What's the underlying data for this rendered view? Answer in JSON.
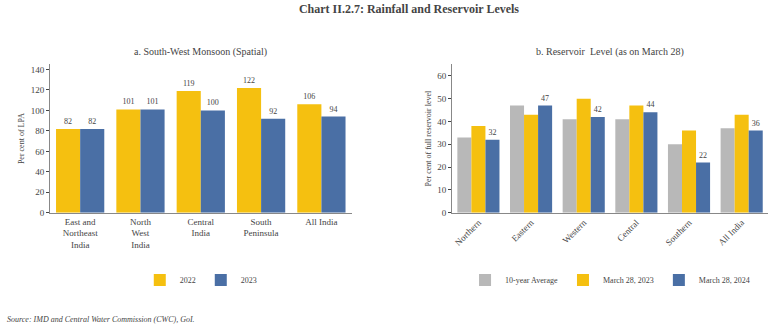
{
  "title": "Chart II.2.7: Rainfall and Reservoir Levels",
  "annotations": [
    "Source: IMD and Central Water Commission (CWC), GoI."
  ],
  "chart_data": [
    {
      "type": "bar",
      "title": "a. South-West Monsoon (Spatial)",
      "categories": [
        "East and\nNortheast\nIndia",
        "North\nWest\nIndia",
        "Central\nIndia",
        "South\nPeninsula",
        "All India"
      ],
      "series": [
        {
          "name": "2022",
          "color": "#f5c010",
          "values": [
            82,
            101,
            119,
            122,
            106
          ]
        },
        {
          "name": "2023",
          "color": "#4a6fa5",
          "values": [
            82,
            101,
            100,
            92,
            94
          ]
        }
      ],
      "ylabel": "Per cent of LPA",
      "ylim": [
        0,
        145
      ],
      "yticks": [
        0,
        20,
        40,
        60,
        80,
        100,
        120,
        140
      ],
      "grid": false,
      "legend": "bottom",
      "data_labels": true
    },
    {
      "type": "bar",
      "title": "b. Reservoir  Level (as on March 28)",
      "categories": [
        "Northern",
        "Eastern",
        "Western",
        "Central",
        "Southern",
        "All India"
      ],
      "series": [
        {
          "name": "10-year Average",
          "color": "#b8b8b8",
          "values": [
            33,
            47,
            41,
            41,
            30,
            37
          ]
        },
        {
          "name": "March 28, 2023",
          "color": "#f5c010",
          "values": [
            38,
            43,
            50,
            47,
            36,
            43
          ]
        },
        {
          "name": "March 28, 2024",
          "color": "#4a6fa5",
          "values": [
            32,
            47,
            42,
            44,
            22,
            36
          ],
          "data_labels": true
        }
      ],
      "ylabel": "Per cent of full reservoir level",
      "ylim": [
        0,
        65
      ],
      "yticks": [
        0,
        10,
        20,
        30,
        40,
        50,
        60
      ],
      "grid": false,
      "legend": "bottom"
    }
  ]
}
